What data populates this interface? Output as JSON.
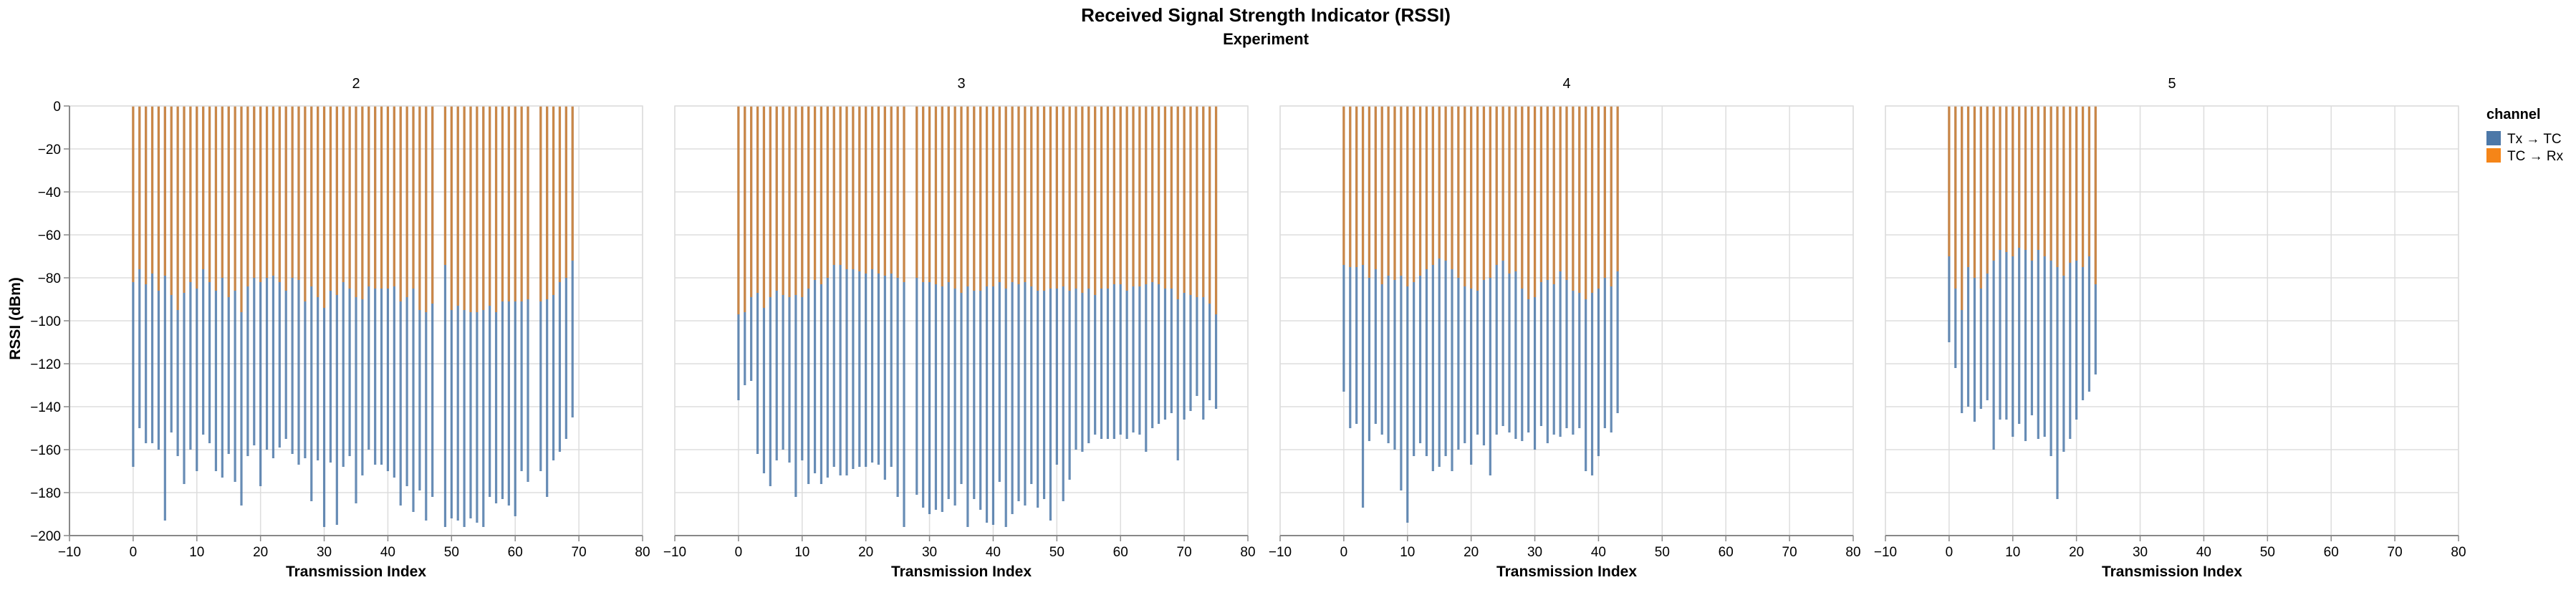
{
  "chart_data": {
    "type": "bar",
    "title": "Received Signal Strength Indicator (RSSI)",
    "subtitle": "Experiment",
    "xlabel": "Transmission Index",
    "ylabel": "RSSI (dBm)",
    "xlim": [
      -10,
      80
    ],
    "ylim": [
      -200,
      0
    ],
    "xticks": [
      "−10",
      "0",
      "10",
      "20",
      "30",
      "40",
      "50",
      "60",
      "70",
      "80"
    ],
    "yticks": [
      "0",
      "−20",
      "−40",
      "−60",
      "−80",
      "−100",
      "−120",
      "−140",
      "−160",
      "−180",
      "−200"
    ],
    "grid": true,
    "legend": {
      "title": "channel",
      "position": "top-right",
      "entries": [
        {
          "label": "Tx → TC",
          "color": "#4c78a8"
        },
        {
          "label": "TC → Rx",
          "color": "#f58518"
        }
      ]
    },
    "facets": [
      {
        "label": "2",
        "x": [
          0,
          1,
          2,
          3,
          4,
          5,
          6,
          7,
          8,
          9,
          10,
          11,
          12,
          13,
          14,
          15,
          16,
          17,
          18,
          19,
          20,
          21,
          22,
          23,
          24,
          25,
          26,
          27,
          28,
          29,
          30,
          31,
          32,
          33,
          34,
          35,
          36,
          37,
          38,
          39,
          40,
          41,
          42,
          43,
          44,
          45,
          46,
          47,
          49,
          50,
          51,
          52,
          53,
          54,
          55,
          56,
          57,
          58,
          59,
          60,
          61,
          62,
          64,
          65,
          66,
          67,
          68,
          69
        ],
        "series": [
          {
            "name": "Tx → TC",
            "values": [
              -168,
              -150,
              -157,
              -157,
              -160,
              -193,
              -152,
              -163,
              -176,
              -160,
              -170,
              -153,
              -157,
              -170,
              -173,
              -162,
              -175,
              -186,
              -163,
              -158,
              -177,
              -160,
              -164,
              -159,
              -155,
              -162,
              -167,
              -164,
              -184,
              -165,
              -196,
              -166,
              -195,
              -168,
              -163,
              -185,
              -172,
              -160,
              -167,
              -167,
              -170,
              -173,
              -186,
              -177,
              -189,
              -179,
              -193,
              -182,
              -196,
              -192,
              -193,
              -196,
              -192,
              -194,
              -196,
              -182,
              -185,
              -183,
              -186,
              -191,
              -170,
              -175,
              -170,
              -182,
              -165,
              -161,
              -155,
              -145
            ]
          },
          {
            "name": "TC → Rx",
            "values": [
              -82,
              -76,
              -83,
              -78,
              -86,
              -79,
              -88,
              -95,
              -87,
              -82,
              -85,
              -76,
              -82,
              -86,
              -80,
              -89,
              -86,
              -96,
              -84,
              -80,
              -82,
              -80,
              -79,
              -82,
              -86,
              -80,
              -81,
              -91,
              -84,
              -89,
              -94,
              -86,
              -88,
              -82,
              -85,
              -89,
              -90,
              -84,
              -85,
              -85,
              -85,
              -84,
              -91,
              -89,
              -85,
              -95,
              -96,
              -92,
              -74,
              -95,
              -93,
              -95,
              -96,
              -96,
              -95,
              -93,
              -96,
              -91,
              -91,
              -91,
              -91,
              -90,
              -91,
              -90,
              -88,
              -82,
              -80,
              -72
            ]
          }
        ]
      },
      {
        "label": "3",
        "x": [
          0,
          1,
          2,
          3,
          4,
          5,
          6,
          7,
          8,
          9,
          10,
          11,
          12,
          13,
          14,
          15,
          16,
          17,
          18,
          19,
          20,
          21,
          22,
          23,
          24,
          25,
          26,
          28,
          29,
          30,
          31,
          32,
          33,
          34,
          35,
          36,
          37,
          38,
          39,
          40,
          41,
          42,
          43,
          44,
          45,
          46,
          47,
          48,
          49,
          50,
          51,
          52,
          53,
          54,
          55,
          56,
          57,
          58,
          59,
          60,
          61,
          62,
          63,
          64,
          65,
          66,
          67,
          68,
          69,
          70,
          71,
          72,
          73,
          74,
          75
        ],
        "series": [
          {
            "name": "Tx → TC",
            "values": [
              -137,
              -130,
              -128,
              -162,
              -171,
              -177,
              -165,
              -160,
              -166,
              -182,
              -165,
              -176,
              -171,
              -176,
              -173,
              -168,
              -172,
              -172,
              -169,
              -168,
              -168,
              -166,
              -167,
              -174,
              -168,
              -182,
              -196,
              -181,
              -187,
              -190,
              -188,
              -189,
              -183,
              -186,
              -176,
              -196,
              -183,
              -188,
              -194,
              -195,
              -175,
              -196,
              -190,
              -184,
              -186,
              -176,
              -187,
              -183,
              -193,
              -167,
              -184,
              -174,
              -160,
              -161,
              -157,
              -153,
              -155,
              -155,
              -155,
              -153,
              -155,
              -152,
              -153,
              -161,
              -150,
              -148,
              -146,
              -143,
              -165,
              -146,
              -142,
              -135,
              -146,
              -137,
              -141
            ]
          },
          {
            "name": "TC → Rx",
            "values": [
              -97,
              -96,
              -89,
              -87,
              -94,
              -89,
              -86,
              -88,
              -89,
              -88,
              -89,
              -85,
              -81,
              -83,
              -80,
              -74,
              -74,
              -76,
              -76,
              -77,
              -78,
              -76,
              -78,
              -79,
              -78,
              -80,
              -82,
              -80,
              -82,
              -82,
              -83,
              -84,
              -82,
              -85,
              -87,
              -84,
              -86,
              -86,
              -84,
              -84,
              -82,
              -85,
              -82,
              -83,
              -82,
              -84,
              -86,
              -86,
              -85,
              -85,
              -84,
              -86,
              -85,
              -87,
              -85,
              -88,
              -85,
              -85,
              -83,
              -83,
              -86,
              -84,
              -84,
              -83,
              -82,
              -83,
              -85,
              -85,
              -90,
              -87,
              -88,
              -89,
              -89,
              -92,
              -97
            ]
          }
        ]
      },
      {
        "label": "4",
        "x": [
          0,
          1,
          2,
          3,
          4,
          5,
          6,
          7,
          8,
          9,
          10,
          11,
          12,
          13,
          14,
          15,
          16,
          17,
          18,
          19,
          20,
          21,
          22,
          23,
          24,
          25,
          26,
          27,
          28,
          29,
          30,
          31,
          32,
          33,
          34,
          35,
          36,
          37,
          38,
          39,
          40,
          41,
          42,
          43
        ],
        "series": [
          {
            "name": "Tx → TC",
            "values": [
              -133,
              -150,
              -148,
              -187,
              -156,
              -148,
              -153,
              -157,
              -160,
              -179,
              -194,
              -163,
              -157,
              -163,
              -170,
              -168,
              -163,
              -170,
              -160,
              -157,
              -167,
              -153,
              -158,
              -172,
              -153,
              -149,
              -152,
              -155,
              -156,
              -152,
              -160,
              -149,
              -157,
              -153,
              -154,
              -150,
              -153,
              -150,
              -170,
              -172,
              -163,
              -150,
              -152,
              -143
            ]
          },
          {
            "name": "TC → Rx",
            "values": [
              -74,
              -75,
              -75,
              -74,
              -80,
              -76,
              -83,
              -79,
              -81,
              -79,
              -84,
              -82,
              -79,
              -76,
              -74,
              -71,
              -72,
              -76,
              -80,
              -84,
              -85,
              -86,
              -81,
              -80,
              -74,
              -72,
              -78,
              -77,
              -85,
              -90,
              -89,
              -82,
              -81,
              -83,
              -77,
              -81,
              -86,
              -87,
              -90,
              -87,
              -85,
              -80,
              -84,
              -77
            ]
          }
        ]
      },
      {
        "label": "5",
        "x": [
          0,
          1,
          2,
          3,
          4,
          5,
          6,
          7,
          8,
          9,
          10,
          11,
          12,
          13,
          14,
          15,
          16,
          17,
          18,
          19,
          20,
          21,
          22,
          23
        ],
        "series": [
          {
            "name": "Tx → TC",
            "values": [
              -110,
              -122,
              -143,
              -140,
              -147,
              -141,
              -137,
              -160,
              -146,
              -146,
              -154,
              -148,
              -156,
              -144,
              -155,
              -154,
              -163,
              -183,
              -161,
              -155,
              -146,
              -137,
              -133,
              -125
            ]
          },
          {
            "name": "TC → Rx",
            "values": [
              -70,
              -85,
              -95,
              -75,
              -80,
              -85,
              -78,
              -72,
              -67,
              -68,
              -70,
              -66,
              -67,
              -72,
              -67,
              -70,
              -72,
              -75,
              -79,
              -73,
              -72,
              -75,
              -70,
              -83
            ]
          }
        ]
      }
    ]
  }
}
